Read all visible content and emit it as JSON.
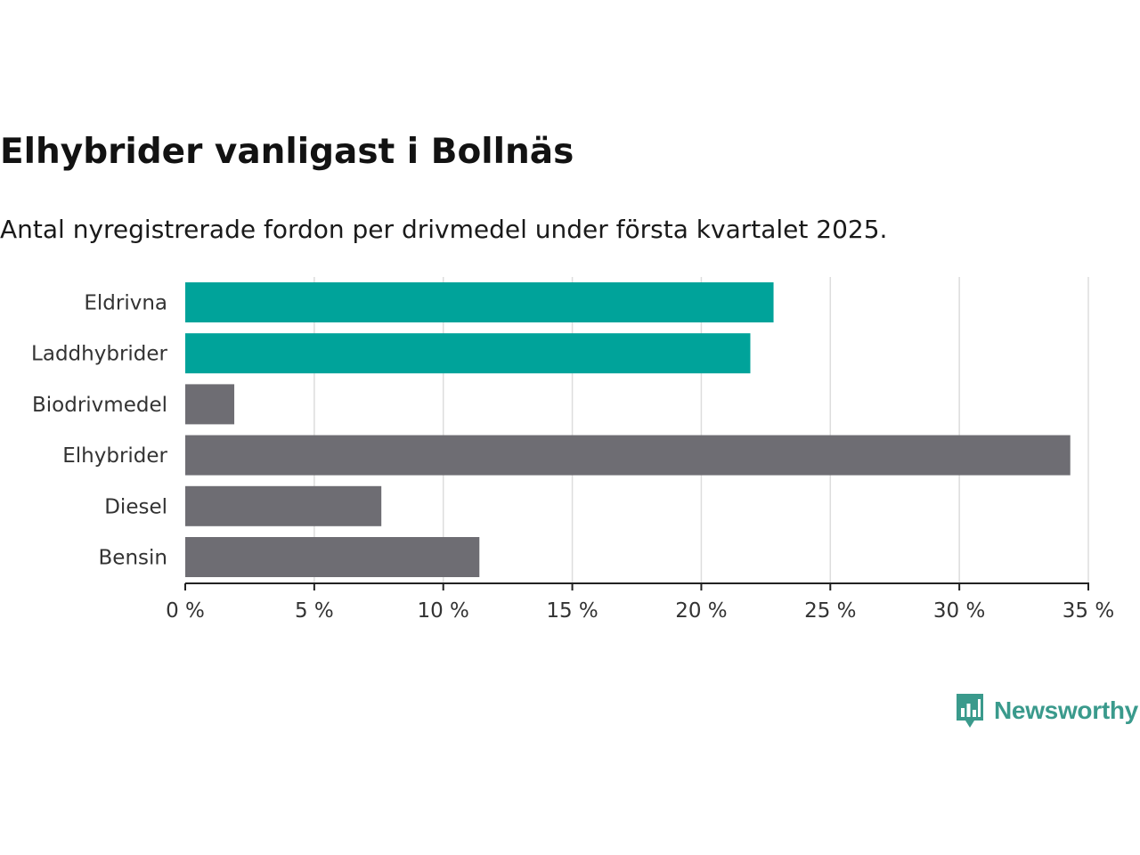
{
  "title": "Elhybrider vanligast i Bollnäs",
  "subtitle": "Antal nyregistrerade fordon per drivmedel under första kvartalet 2025.",
  "brand": {
    "name": "Newsworthy",
    "icon": "newsworthy-bar-chart-speech-bubble-icon",
    "color": "#3a9a8c"
  },
  "colors": {
    "highlight": "#00a39a",
    "default": "#6e6d73",
    "gridline": "#dddddd",
    "axis": "#222222"
  },
  "chart_data": {
    "type": "bar",
    "orientation": "horizontal",
    "title": "Elhybrider vanligast i Bollnäs",
    "subtitle": "Antal nyregistrerade fordon per drivmedel under första kvartalet 2025.",
    "categories": [
      "Eldrivna",
      "Laddhybrider",
      "Biodrivmedel",
      "Elhybrider",
      "Diesel",
      "Bensin"
    ],
    "values": [
      22.8,
      21.9,
      1.9,
      34.3,
      7.6,
      11.4
    ],
    "highlighted": [
      true,
      true,
      false,
      false,
      false,
      false
    ],
    "unit": "%",
    "xlim": [
      0,
      35
    ],
    "xticks": [
      0,
      5,
      10,
      15,
      20,
      25,
      30,
      35
    ],
    "xtick_labels": [
      "0 %",
      "5 %",
      "10 %",
      "15 %",
      "20 %",
      "25 %",
      "30 %",
      "35 %"
    ],
    "grid": "vertical",
    "legend": "none"
  }
}
